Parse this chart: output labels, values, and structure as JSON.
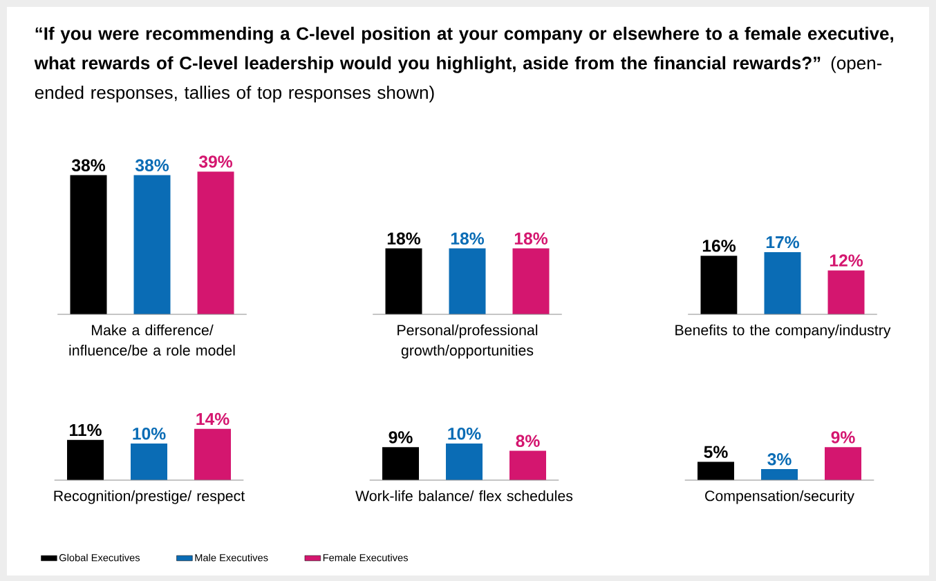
{
  "chart_data": [
    {
      "type": "bar",
      "title": "**“If you were recommending a C-level position at your company or elsewhere to a female executive, what rewards of C-level leadership would you highlight, aside from the financial rewards?”** (open-ended responses, tallies of top responses shown)",
      "categories": [
        "Make a difference/ influence/be a role model",
        "Personal/professional growth/opportunities",
        "Benefits to the company/industry"
      ],
      "tick_labels": "x",
      "series": [
        {
          "color": "#000000",
          "values": [
            38,
            18,
            16
          ],
          "value_labels": [
            "38%",
            "18%",
            "16%"
          ]
        },
        {
          "color": "#0a6cb5",
          "values": [
            38,
            18,
            17
          ],
          "value_labels": [
            "38%",
            "18%",
            "17%"
          ]
        },
        {
          "color": "#d4166f",
          "values": [
            39,
            18,
            12
          ],
          "value_labels": [
            "39%",
            "18%",
            "12%"
          ]
        }
      ]
    },
    {
      "type": "bar",
      "categories": [
        "Recognition/prestige/ respect",
        "Work-life balance/ flex schedules",
        "Compensation/security"
      ],
      "tick_labels": "x",
      "legend": "bottom",
      "series": [
        {
          "name": "Global Executives",
          "color": "#000000",
          "values": [
            11,
            9,
            5
          ],
          "value_labels": [
            "11%",
            "9%",
            "5%"
          ]
        },
        {
          "name": "Male Executives",
          "color": "#0a6cb5",
          "values": [
            10,
            10,
            3
          ],
          "value_labels": [
            "10%",
            "10%",
            "3%"
          ]
        },
        {
          "name": "Female Executives",
          "color": "#d4166f",
          "values": [
            14,
            8,
            9
          ],
          "value_labels": [
            "14%",
            "8%",
            "9%"
          ]
        }
      ]
    }
  ]
}
